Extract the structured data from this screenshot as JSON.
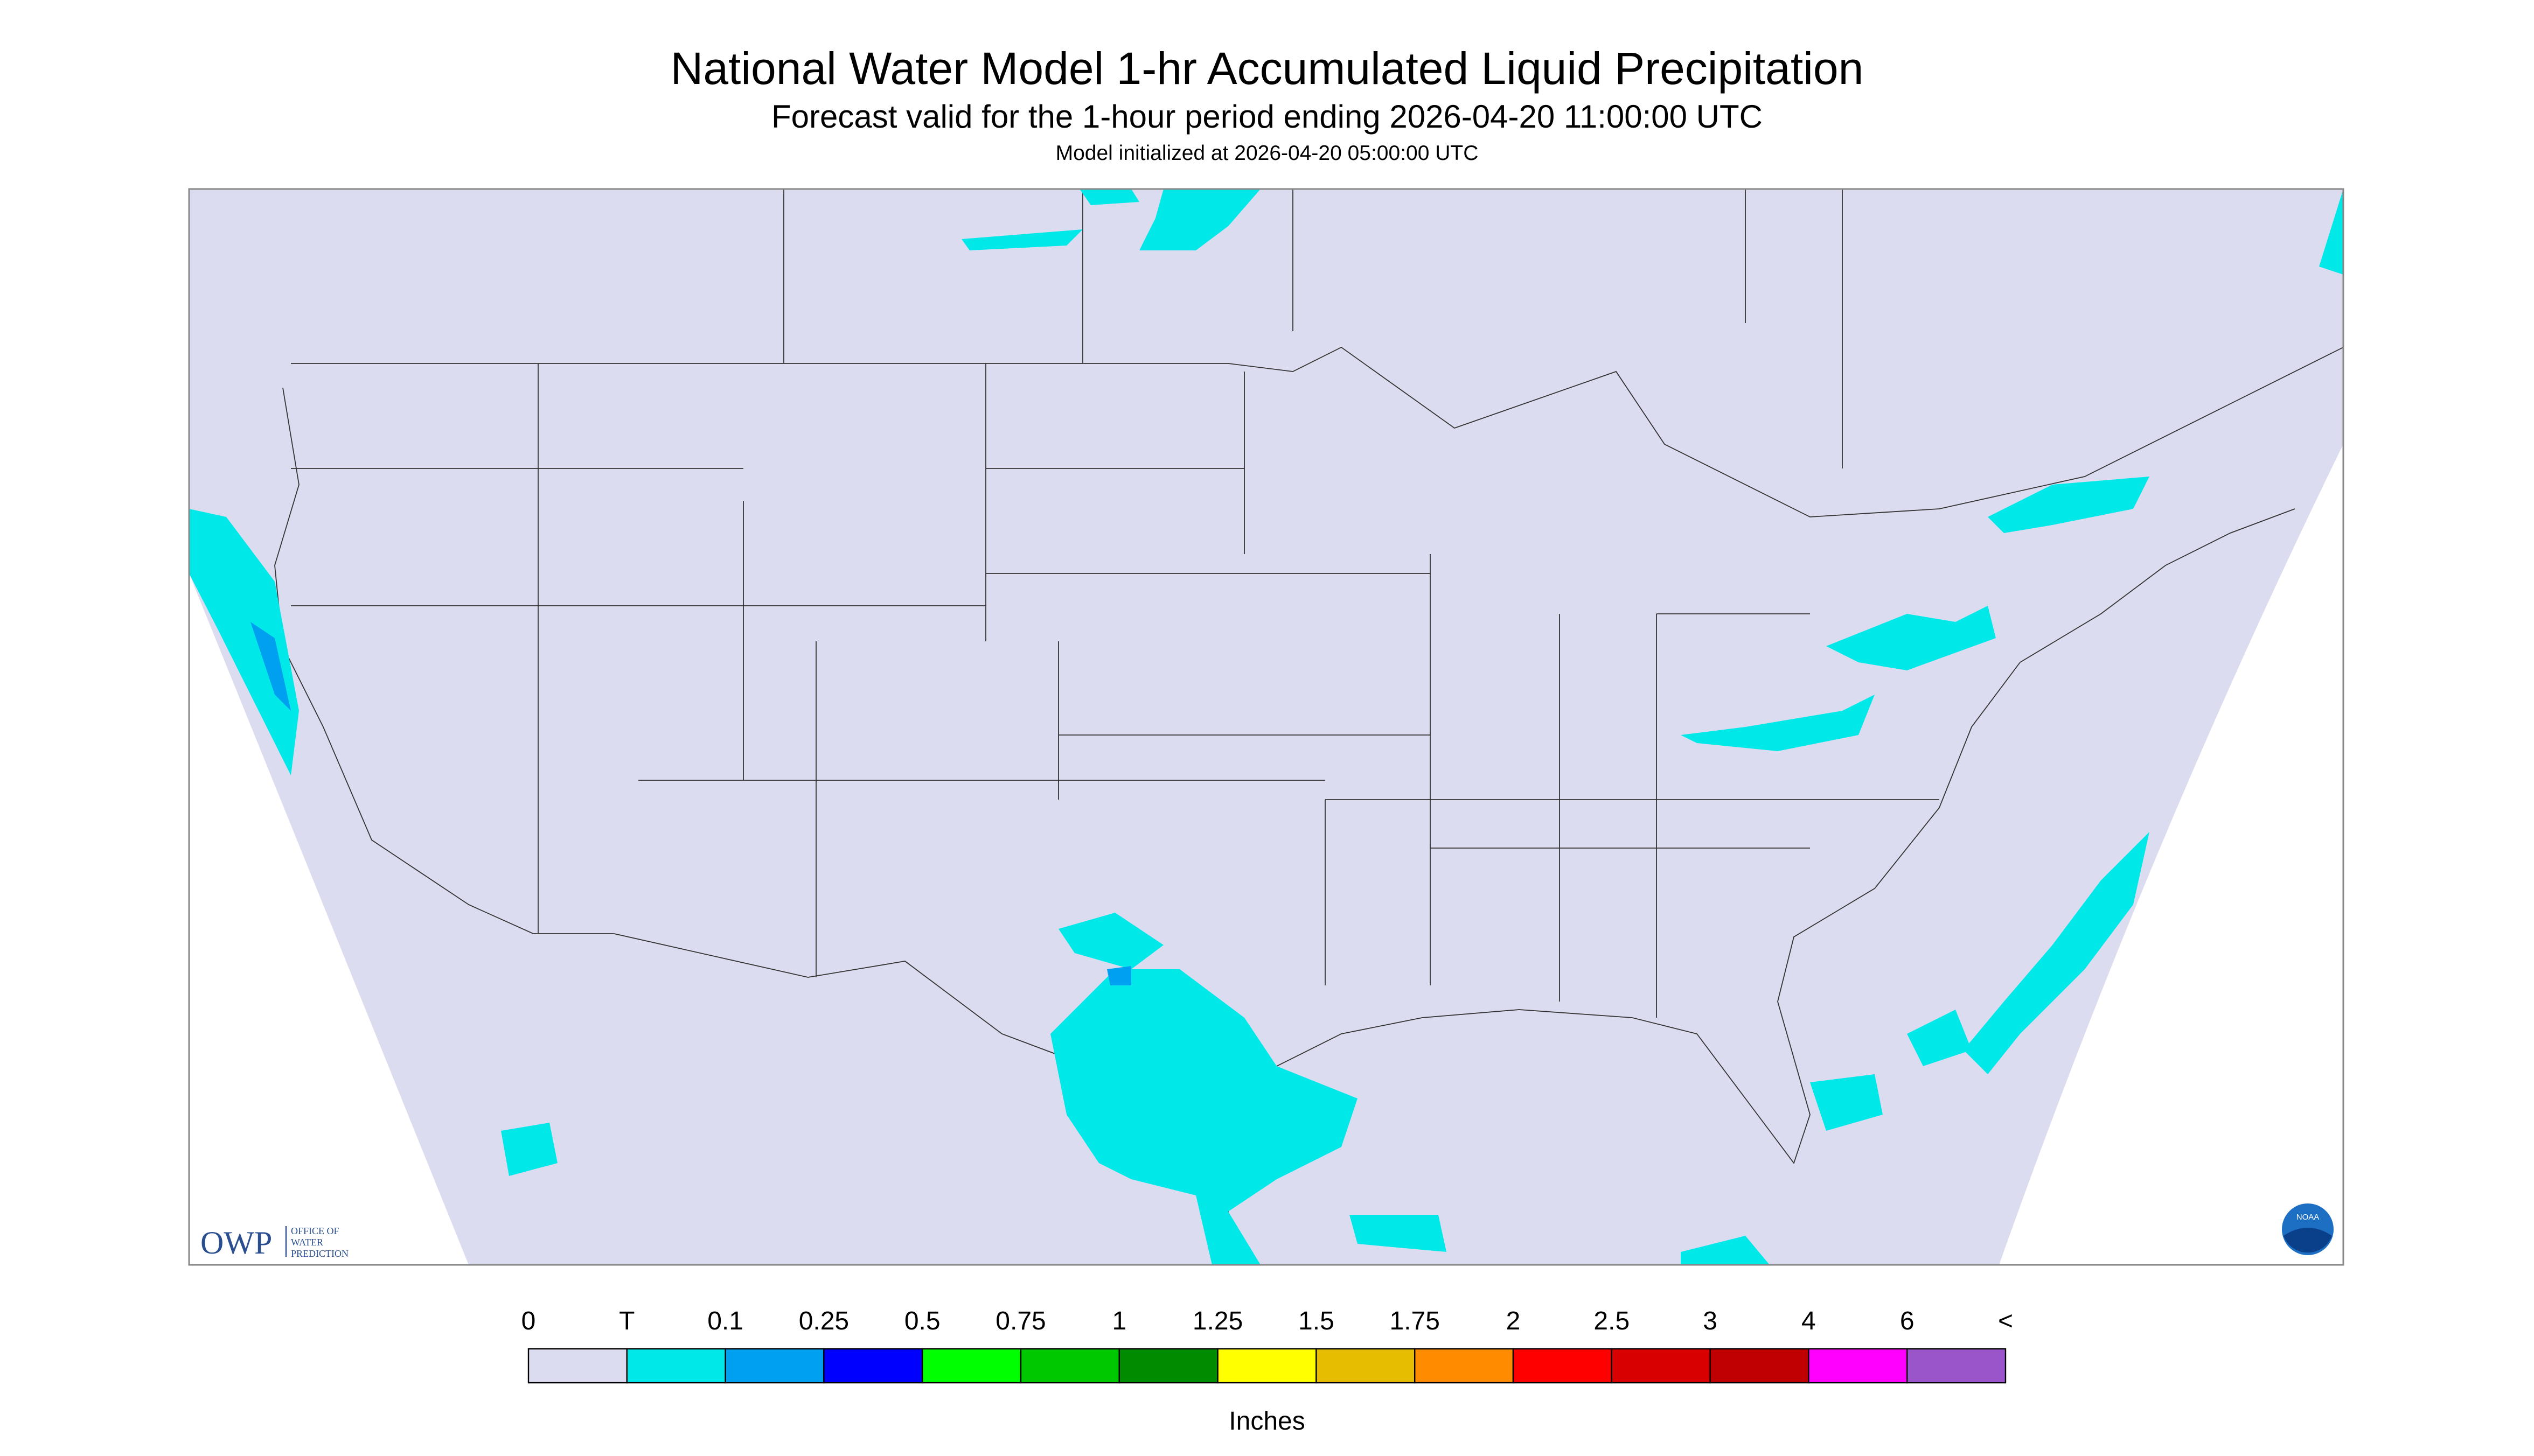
{
  "header": {
    "title": "National Water Model 1-hr Accumulated Liquid Precipitation",
    "subtitle": "Forecast valid for the 1-hour period ending 2026-04-20 11:00:00 UTC",
    "init": "Model initialized at 2026-04-20 05:00:00 UTC"
  },
  "logos": {
    "owp": "OWP",
    "owp_lines": [
      "OFFICE OF",
      "WATER",
      "PREDICTION"
    ],
    "noaa": "NOAA"
  },
  "legend": {
    "labels": [
      "0",
      "T",
      "0.1",
      "0.25",
      "0.5",
      "0.75",
      "1",
      "1.25",
      "1.5",
      "1.75",
      "2",
      "2.5",
      "3",
      "4",
      "6",
      "<"
    ],
    "colors": [
      "#dcdcf0",
      "#00e8e8",
      "#00a0f0",
      "#0000ff",
      "#00ff00",
      "#00c800",
      "#008c00",
      "#ffff00",
      "#e6bd00",
      "#ff8c00",
      "#ff0000",
      "#d80000",
      "#c00000",
      "#ff00ff",
      "#9955c9"
    ],
    "unit": "Inches"
  }
}
